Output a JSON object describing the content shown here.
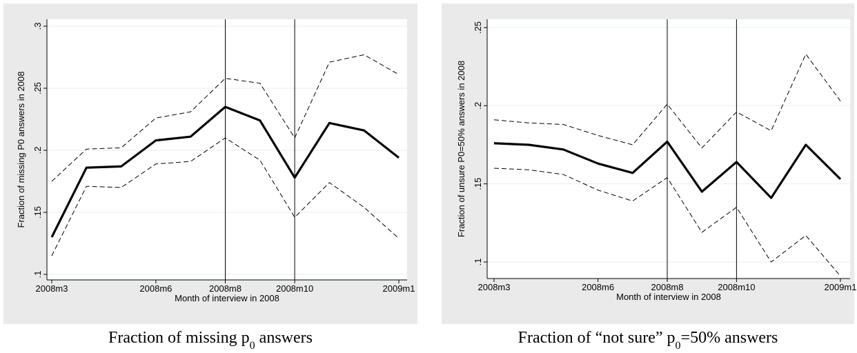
{
  "chart_data": [
    {
      "type": "line",
      "y_label": "Fraction of missing P0 answers in 2008",
      "x_label": "Month of interview in 2008",
      "caption": [
        "Fraction of missing p",
        "0",
        " answers"
      ],
      "x": [
        578,
        579,
        580,
        581,
        582,
        583,
        584,
        585,
        586,
        587,
        588
      ],
      "series": [
        {
          "color": "#000000",
          "dashed": false,
          "values": [
            0.13,
            0.186,
            0.187,
            0.208,
            0.211,
            0.235,
            0.224,
            0.178,
            0.222,
            0.216,
            0.194
          ]
        },
        {
          "color": "#000000",
          "dashed": true,
          "values": [
            0.175,
            0.201,
            0.202,
            0.226,
            0.231,
            0.258,
            0.254,
            0.21,
            0.271,
            0.277,
            0.261
          ]
        },
        {
          "color": "#000000",
          "dashed": true,
          "values": [
            0.115,
            0.171,
            0.17,
            0.189,
            0.191,
            0.21,
            0.192,
            0.146,
            0.174,
            0.154,
            0.129
          ]
        }
      ],
      "xlim": [
        578,
        588
      ],
      "xticks": [
        {
          "value": 578,
          "label": "2008m3"
        },
        {
          "value": 581,
          "label": "2008m6"
        },
        {
          "value": 583,
          "label": "2008m8"
        },
        {
          "value": 585,
          "label": "2008m10"
        },
        {
          "value": 588,
          "label": "2009m1"
        }
      ],
      "xlines": [
        583,
        585
      ],
      "ylim": [
        0.1,
        0.3
      ],
      "yticks": [
        {
          "value": 0.1,
          "label": ".1"
        },
        {
          "value": 0.15,
          "label": ".15"
        },
        {
          "value": 0.2,
          "label": ".2"
        },
        {
          "value": 0.25,
          "label": ".25"
        },
        {
          "value": 0.3,
          "label": ".3"
        }
      ],
      "grid": true
    },
    {
      "type": "line",
      "y_label": "Fraction of unsure P0=50% answers in 2008",
      "x_label": "Month of interview in 2008",
      "caption": [
        "Fraction of “not sure” p",
        "0",
        "=50% answers"
      ],
      "x": [
        578,
        579,
        580,
        581,
        582,
        583,
        584,
        585,
        586,
        587,
        588
      ],
      "series": [
        {
          "color": "#000000",
          "dashed": false,
          "values": [
            0.176,
            0.175,
            0.172,
            0.163,
            0.157,
            0.177,
            0.145,
            0.164,
            0.141,
            0.175,
            0.153
          ]
        },
        {
          "color": "#000000",
          "dashed": true,
          "values": [
            0.191,
            0.189,
            0.188,
            0.181,
            0.175,
            0.201,
            0.173,
            0.196,
            0.184,
            0.233,
            0.203
          ]
        },
        {
          "color": "#000000",
          "dashed": true,
          "values": [
            0.16,
            0.159,
            0.156,
            0.146,
            0.139,
            0.154,
            0.119,
            0.135,
            0.1,
            0.117,
            0.091
          ]
        }
      ],
      "xlim": [
        578,
        588
      ],
      "xticks": [
        {
          "value": 578,
          "label": "2008m3"
        },
        {
          "value": 581,
          "label": "2008m6"
        },
        {
          "value": 583,
          "label": "2008m8"
        },
        {
          "value": 585,
          "label": "2008m10"
        },
        {
          "value": 588,
          "label": "2009m1"
        }
      ],
      "xlines": [
        583,
        585
      ],
      "ylim": [
        0.1,
        0.25
      ],
      "yticks": [
        {
          "value": 0.1,
          "label": ".1"
        },
        {
          "value": 0.15,
          "label": ".15"
        },
        {
          "value": 0.2,
          "label": ".2"
        },
        {
          "value": 0.25,
          "label": ".25"
        }
      ],
      "grid": true
    }
  ]
}
